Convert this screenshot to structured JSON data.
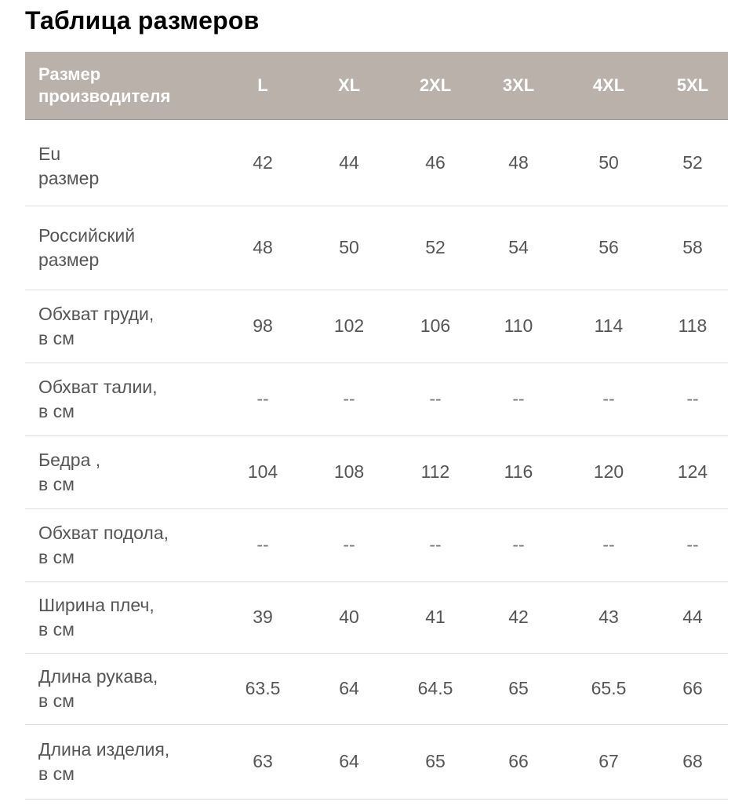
{
  "page": {
    "title": "Таблица размеров"
  },
  "table": {
    "header": {
      "label": "Размер\nпроизводителя",
      "sizes": [
        "L",
        "XL",
        "2XL",
        "3XL",
        "4XL",
        "5XL"
      ]
    },
    "rows": [
      {
        "label": "Eu\nразмер",
        "values": [
          "42",
          "44",
          "46",
          "48",
          "50",
          "52"
        ]
      },
      {
        "label": "Российский\nразмер",
        "values": [
          "48",
          "50",
          "52",
          "54",
          "56",
          "58"
        ]
      },
      {
        "label": "Обхват груди,\nв см",
        "values": [
          "98",
          "102",
          "106",
          "110",
          "114",
          "118"
        ]
      },
      {
        "label": "Обхват талии,\nв см",
        "values": [
          "--",
          "--",
          "--",
          "--",
          "--",
          "--"
        ]
      },
      {
        "label": "Бедра ,\nв см",
        "values": [
          "104",
          "108",
          "112",
          "116",
          "120",
          "124"
        ]
      },
      {
        "label": "Обхват подола,\nв см",
        "values": [
          "--",
          "--",
          "--",
          "--",
          "--",
          "--"
        ]
      },
      {
        "label": "Ширина плеч,\nв см",
        "values": [
          "39",
          "40",
          "41",
          "42",
          "43",
          "44"
        ]
      },
      {
        "label": "Длина рукава,\nв см",
        "values": [
          "63.5",
          "64",
          "64.5",
          "65",
          "65.5",
          "66"
        ]
      },
      {
        "label": "Длина изделия,\nв см",
        "values": [
          "63",
          "64",
          "65",
          "66",
          "67",
          "68"
        ]
      }
    ]
  },
  "colors": {
    "header_background": "#b9b1aa",
    "header_text": "#ffffff",
    "body_text": "#555555",
    "divider": "#dcdcdc"
  }
}
